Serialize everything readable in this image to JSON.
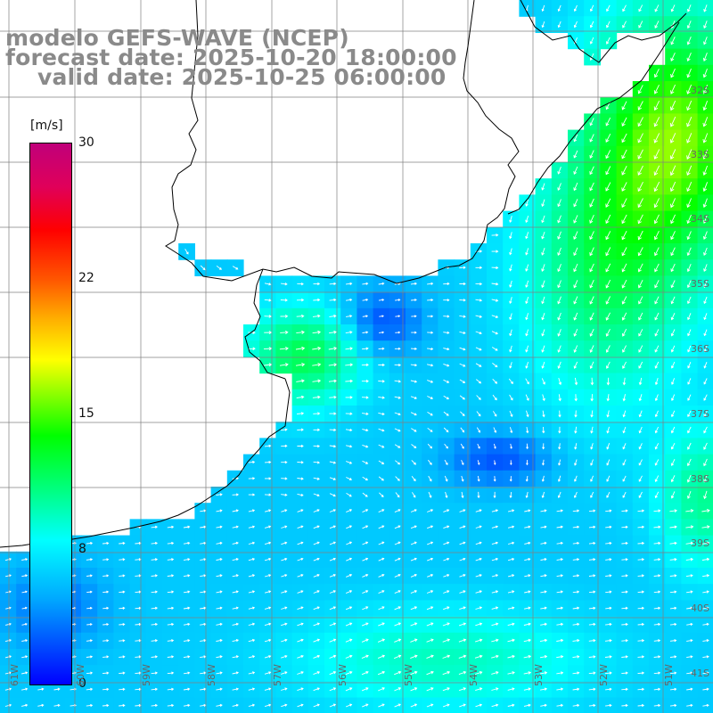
{
  "title": {
    "line1": "modelo GEFS-WAVE (NCEP)",
    "line2": "forecast date: 2025-10-20 18:00:00",
    "line3": "valid date: 2025-10-25 06:00:00"
  },
  "colorbar": {
    "unit": "[m/s]",
    "ticks": [
      "30",
      "22",
      "15",
      "8",
      "0"
    ],
    "tick_values": [
      30,
      22,
      15,
      8,
      0
    ],
    "colors": [
      "#0000ff",
      "#00ffff",
      "#00ff00",
      "#ffff00",
      "#ff0000",
      "#c0007a"
    ]
  },
  "grid": {
    "lat_labels": [
      "32S",
      "33S",
      "34S",
      "35S",
      "36S",
      "37S",
      "38S",
      "39S",
      "40S",
      "41S"
    ],
    "lon_labels": [
      "61W",
      "60W",
      "59W",
      "58W",
      "57W",
      "56W",
      "55W",
      "54W",
      "53W",
      "52W",
      "51W"
    ]
  },
  "colors": {
    "land": "#ffffff",
    "coast": "#000000",
    "grid": "#808080",
    "arrows": "#ffffff",
    "title": "#8a8a8a"
  }
}
